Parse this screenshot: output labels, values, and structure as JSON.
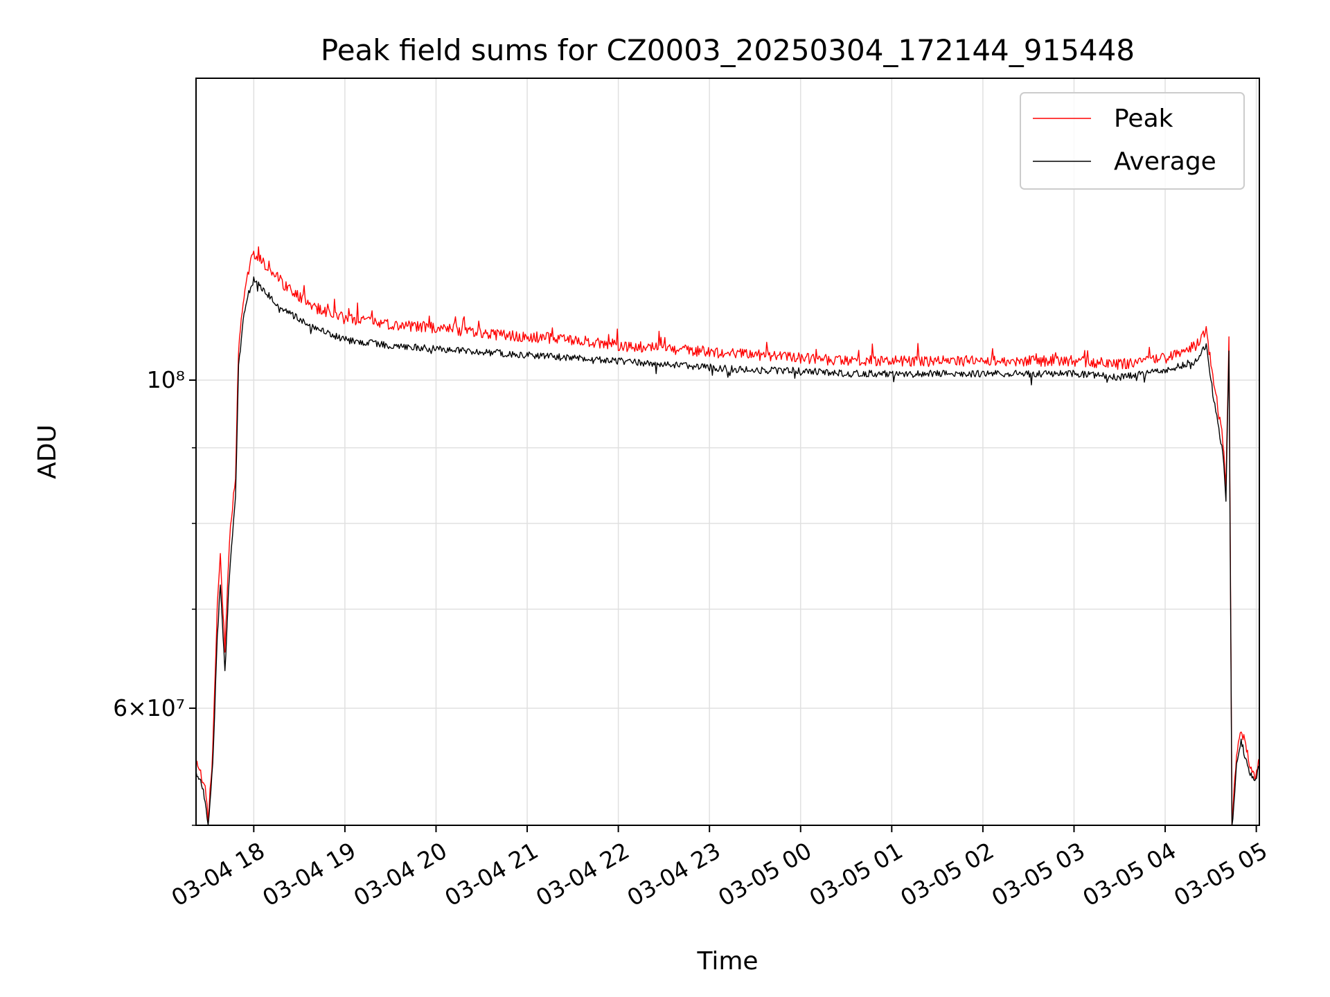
{
  "chart_data": {
    "type": "line",
    "title": "Peak field sums for CZ0003_20250304_172144_915448",
    "xlabel": "Time",
    "ylabel": "ADU",
    "yscale": "log",
    "grid": true,
    "legend_position": "top-right",
    "xlim": [
      "2025-03-04 17:22",
      "2025-03-05 05:02"
    ],
    "ylim": [
      50000000,
      160000000
    ],
    "x_ticks": [
      "2025-03-04 18:00",
      "2025-03-04 19:00",
      "2025-03-04 20:00",
      "2025-03-04 21:00",
      "2025-03-04 22:00",
      "2025-03-04 23:00",
      "2025-03-05 00:00",
      "2025-03-05 01:00",
      "2025-03-05 02:00",
      "2025-03-05 03:00",
      "2025-03-05 04:00",
      "2025-03-05 05:00"
    ],
    "x_tick_labels": [
      "03-04 18",
      "03-04 19",
      "03-04 20",
      "03-04 21",
      "03-04 22",
      "03-04 23",
      "03-05 00",
      "03-05 01",
      "03-05 02",
      "03-05 03",
      "03-05 04",
      "03-05 05"
    ],
    "y_major_ticks": [
      60000000,
      100000000
    ],
    "y_major_tick_labels": [
      "6×10⁷",
      "10⁸"
    ],
    "y_minor_ticks": [
      50000000,
      70000000,
      80000000,
      90000000
    ],
    "series": [
      {
        "name": "Peak",
        "color": "#ff0000",
        "x": [
          "2025-03-04 17:22",
          "2025-03-04 17:25",
          "2025-03-04 17:28",
          "2025-03-04 17:30",
          "2025-03-04 17:33",
          "2025-03-04 17:36",
          "2025-03-04 17:38",
          "2025-03-04 17:41",
          "2025-03-04 17:44",
          "2025-03-04 17:48",
          "2025-03-04 17:50",
          "2025-03-04 17:53",
          "2025-03-04 17:56",
          "2025-03-04 18:00",
          "2025-03-04 18:10",
          "2025-03-04 18:20",
          "2025-03-04 18:30",
          "2025-03-04 18:40",
          "2025-03-04 18:50",
          "2025-03-04 19:00",
          "2025-03-04 19:30",
          "2025-03-04 20:00",
          "2025-03-04 20:30",
          "2025-03-04 21:00",
          "2025-03-04 21:30",
          "2025-03-04 22:00",
          "2025-03-04 22:30",
          "2025-03-04 23:00",
          "2025-03-04 23:30",
          "2025-03-05 00:00",
          "2025-03-05 00:30",
          "2025-03-05 01:00",
          "2025-03-05 01:30",
          "2025-03-05 02:00",
          "2025-03-05 02:30",
          "2025-03-05 03:00",
          "2025-03-05 03:30",
          "2025-03-05 03:45",
          "2025-03-05 04:00",
          "2025-03-05 04:20",
          "2025-03-05 04:27",
          "2025-03-05 04:32",
          "2025-03-05 04:38",
          "2025-03-05 04:40",
          "2025-03-05 04:42",
          "2025-03-05 04:44",
          "2025-03-05 04:47",
          "2025-03-05 04:50",
          "2025-03-05 04:53",
          "2025-03-05 04:56",
          "2025-03-05 04:59",
          "2025-03-05 05:02"
        ],
        "values": [
          55000000,
          54500000,
          52800000,
          50500000,
          56000000,
          70500000,
          76000000,
          66000000,
          78000000,
          86000000,
          105000000,
          113000000,
          118000000,
          122000000,
          119000000,
          116000000,
          114000000,
          112000000,
          111000000,
          110000000,
          109000000,
          108500000,
          107500000,
          107000000,
          106500000,
          105500000,
          105000000,
          104500000,
          104000000,
          103500000,
          103000000,
          103000000,
          103000000,
          103000000,
          103000000,
          103000000,
          102500000,
          103000000,
          103500000,
          105500000,
          108000000,
          100000000,
          91000000,
          85000000,
          107000000,
          50000000,
          56000000,
          58000000,
          56500000,
          55000000,
          54000000,
          55500000
        ]
      },
      {
        "name": "Average",
        "color": "#000000",
        "x": [
          "2025-03-04 17:22",
          "2025-03-04 17:25",
          "2025-03-04 17:28",
          "2025-03-04 17:30",
          "2025-03-04 17:33",
          "2025-03-04 17:36",
          "2025-03-04 17:38",
          "2025-03-04 17:41",
          "2025-03-04 17:44",
          "2025-03-04 17:48",
          "2025-03-04 17:50",
          "2025-03-04 17:53",
          "2025-03-04 17:56",
          "2025-03-04 18:00",
          "2025-03-04 18:10",
          "2025-03-04 18:20",
          "2025-03-04 18:30",
          "2025-03-04 18:40",
          "2025-03-04 18:50",
          "2025-03-04 19:00",
          "2025-03-04 19:30",
          "2025-03-04 20:00",
          "2025-03-04 20:30",
          "2025-03-04 21:00",
          "2025-03-04 21:30",
          "2025-03-04 22:00",
          "2025-03-04 22:30",
          "2025-03-04 23:00",
          "2025-03-04 23:30",
          "2025-03-05 00:00",
          "2025-03-05 00:30",
          "2025-03-05 01:00",
          "2025-03-05 01:30",
          "2025-03-05 02:00",
          "2025-03-05 02:30",
          "2025-03-05 03:00",
          "2025-03-05 03:30",
          "2025-03-05 03:45",
          "2025-03-05 04:00",
          "2025-03-05 04:20",
          "2025-03-05 04:27",
          "2025-03-05 04:32",
          "2025-03-05 04:38",
          "2025-03-05 04:40",
          "2025-03-05 04:42",
          "2025-03-05 04:44",
          "2025-03-05 04:47",
          "2025-03-05 04:50",
          "2025-03-05 04:53",
          "2025-03-05 04:56",
          "2025-03-05 04:59",
          "2025-03-05 05:02"
        ],
        "values": [
          54200000,
          53800000,
          52000000,
          50000000,
          55000000,
          67000000,
          73000000,
          63500000,
          74000000,
          83000000,
          102000000,
          110000000,
          114000000,
          117000000,
          114000000,
          111500000,
          110000000,
          108500000,
          107500000,
          106500000,
          105500000,
          105000000,
          104500000,
          104000000,
          103500000,
          103000000,
          102500000,
          102000000,
          101500000,
          101500000,
          101000000,
          101000000,
          101000000,
          101000000,
          101000000,
          101000000,
          100500000,
          101000000,
          101500000,
          103000000,
          105500000,
          97000000,
          89000000,
          83500000,
          105000000,
          49500000,
          55000000,
          57000000,
          55500000,
          54200000,
          53500000,
          54800000
        ]
      }
    ]
  }
}
